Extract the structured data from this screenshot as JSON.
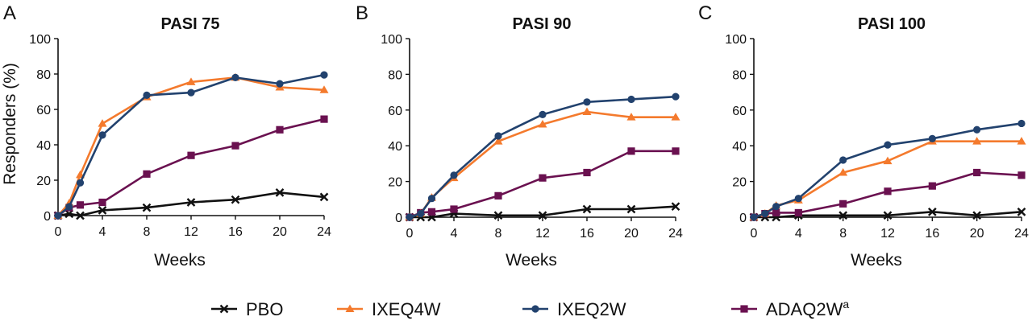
{
  "colors": {
    "PBO": "#111111",
    "IXEQ4W": "#f47a2d",
    "IXEQ2W": "#22426e",
    "ADAQ2W": "#6a1150",
    "axis": "#111111"
  },
  "legend": [
    {
      "key": "PBO",
      "label": "PBO",
      "sup": "",
      "marker": "x"
    },
    {
      "key": "IXEQ4W",
      "label": "IXEQ4W",
      "sup": "",
      "marker": "triangle"
    },
    {
      "key": "IXEQ2W",
      "label": "IXEQ2W",
      "sup": "",
      "marker": "circle"
    },
    {
      "key": "ADAQ2W",
      "label": "ADAQ2W",
      "sup": "a",
      "marker": "square"
    }
  ],
  "chart_data": [
    {
      "type": "line",
      "panel": "A",
      "title": "PASI 75",
      "xlabel": "Weeks",
      "ylabel": "Responders (%)",
      "xlim": [
        0,
        24
      ],
      "ylim": [
        0,
        100
      ],
      "xticks": [
        0,
        4,
        8,
        12,
        16,
        20,
        24
      ],
      "yticks": [
        0,
        20,
        40,
        60,
        80,
        100
      ],
      "grid": false,
      "series": [
        {
          "key": "PBO",
          "name": "PBO",
          "x": [
            0,
            1,
            2,
            4,
            8,
            12,
            16,
            20,
            24
          ],
          "y": [
            0,
            1,
            0,
            3,
            4.5,
            7.5,
            9,
            13,
            10.5
          ]
        },
        {
          "key": "IXEQ4W",
          "name": "IXEQ4W",
          "x": [
            0,
            1,
            2,
            4,
            8,
            12,
            16,
            20,
            24
          ],
          "y": [
            0,
            7,
            23,
            52,
            67,
            75.5,
            78,
            72.5,
            71
          ]
        },
        {
          "key": "IXEQ2W",
          "name": "IXEQ2W",
          "x": [
            0,
            1,
            2,
            4,
            8,
            12,
            16,
            20,
            24
          ],
          "y": [
            0,
            5,
            18.5,
            45.5,
            68,
            69.5,
            78,
            74.5,
            79.5
          ]
        },
        {
          "key": "ADAQ2W",
          "name": "ADAQ2W",
          "x": [
            0,
            1,
            2,
            4,
            8,
            12,
            16,
            20,
            24
          ],
          "y": [
            0,
            4.5,
            6,
            7.5,
            23.5,
            34,
            39.5,
            48.5,
            54.5
          ]
        }
      ]
    },
    {
      "type": "line",
      "panel": "B",
      "title": "PASI 90",
      "xlabel": "Weeks",
      "ylabel": "",
      "xlim": [
        0,
        24
      ],
      "ylim": [
        0,
        100
      ],
      "xticks": [
        0,
        4,
        8,
        12,
        16,
        20,
        24
      ],
      "yticks": [
        0,
        20,
        40,
        60,
        80,
        100
      ],
      "grid": false,
      "series": [
        {
          "key": "PBO",
          "name": "PBO",
          "x": [
            0,
            1,
            2,
            4,
            8,
            12,
            16,
            20,
            24
          ],
          "y": [
            0,
            0,
            0,
            2,
            1,
            1,
            4.5,
            4.5,
            6
          ]
        },
        {
          "key": "IXEQ4W",
          "name": "IXEQ4W",
          "x": [
            0,
            1,
            2,
            4,
            8,
            12,
            16,
            20,
            24
          ],
          "y": [
            0,
            2,
            11,
            22,
            42.5,
            52,
            59,
            56,
            56
          ]
        },
        {
          "key": "IXEQ2W",
          "name": "IXEQ2W",
          "x": [
            0,
            1,
            2,
            4,
            8,
            12,
            16,
            20,
            24
          ],
          "y": [
            0,
            2,
            10.5,
            23.5,
            45.5,
            57.5,
            64.5,
            66,
            67.5
          ]
        },
        {
          "key": "ADAQ2W",
          "name": "ADAQ2W",
          "x": [
            0,
            1,
            2,
            4,
            8,
            12,
            16,
            20,
            24
          ],
          "y": [
            0,
            2.5,
            3,
            4.5,
            12,
            22,
            25,
            37,
            37
          ]
        }
      ]
    },
    {
      "type": "line",
      "panel": "C",
      "title": "PASI 100",
      "xlabel": "Weeks",
      "ylabel": "",
      "xlim": [
        0,
        24
      ],
      "ylim": [
        0,
        100
      ],
      "xticks": [
        0,
        4,
        8,
        12,
        16,
        20,
        24
      ],
      "yticks": [
        0,
        20,
        40,
        60,
        80,
        100
      ],
      "grid": false,
      "series": [
        {
          "key": "PBO",
          "name": "PBO",
          "x": [
            0,
            1,
            2,
            4,
            8,
            12,
            16,
            20,
            24
          ],
          "y": [
            0,
            0,
            0,
            1,
            1,
            1,
            3,
            1,
            3
          ]
        },
        {
          "key": "IXEQ4W",
          "name": "IXEQ4W",
          "x": [
            0,
            1,
            2,
            4,
            8,
            12,
            16,
            20,
            24
          ],
          "y": [
            0,
            2,
            6.5,
            9.5,
            25,
            31.5,
            42.5,
            42.5,
            42.5
          ]
        },
        {
          "key": "IXEQ2W",
          "name": "IXEQ2W",
          "x": [
            0,
            1,
            2,
            4,
            8,
            12,
            16,
            20,
            24
          ],
          "y": [
            0,
            2,
            6,
            10.5,
            32,
            40.5,
            44,
            49,
            52.5
          ]
        },
        {
          "key": "ADAQ2W",
          "name": "ADAQ2W",
          "x": [
            0,
            1,
            2,
            4,
            8,
            12,
            16,
            20,
            24
          ],
          "y": [
            0,
            2,
            2.5,
            2.5,
            7.5,
            14.5,
            17.5,
            25,
            23.5
          ]
        }
      ]
    }
  ]
}
